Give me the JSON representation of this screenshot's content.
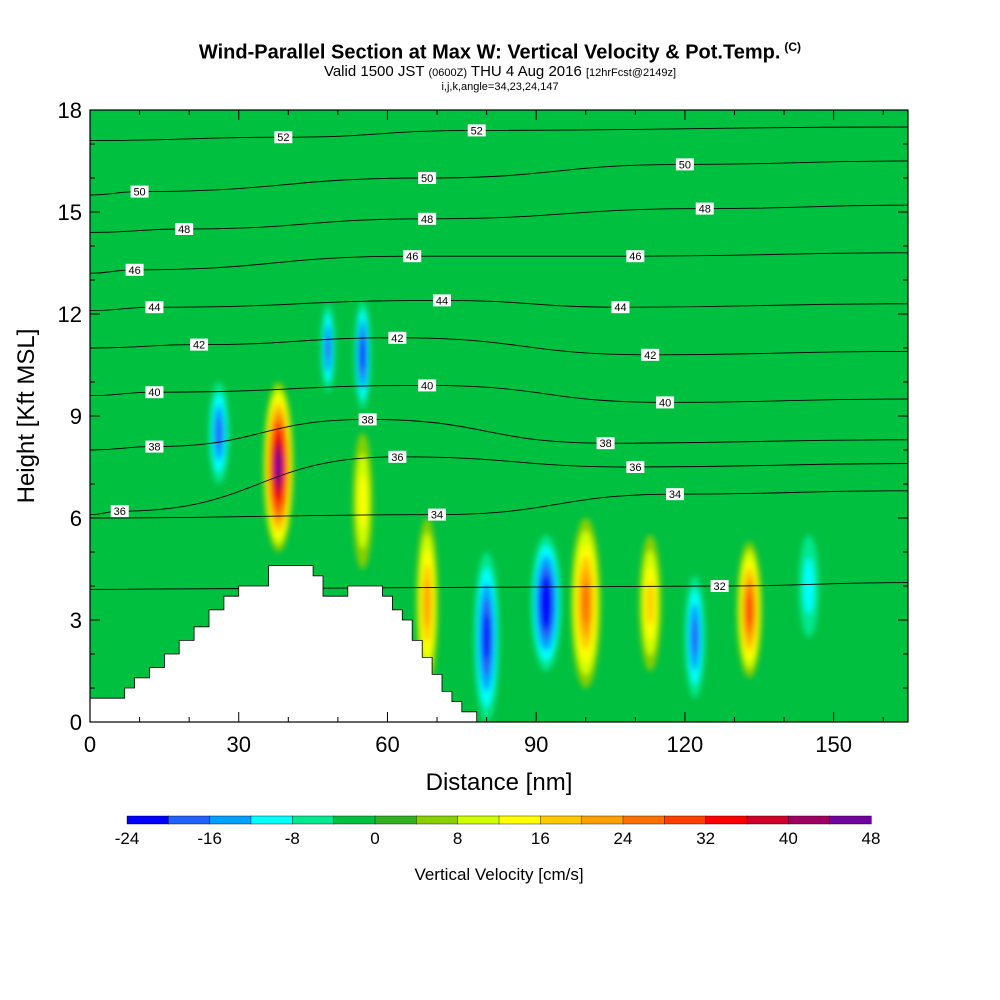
{
  "header": {
    "title": "Wind-Parallel Section at Max W: Vertical Velocity & Pot.Temp.",
    "copyright_mark": "(C)",
    "valid_main": "Valid 1500 JST",
    "valid_utc": "(0600Z)",
    "valid_date": "THU 4 Aug 2016",
    "forecast": "[12hrFcst@2149z]",
    "section_params": "i,j,k,angle=34,23,24,147"
  },
  "colors": {
    "background": "#00c040",
    "scale": [
      "#0000ff",
      "#2060ff",
      "#00a0ff",
      "#00ffff",
      "#00e890",
      "#00c040",
      "#30b020",
      "#88d000",
      "#d0ff00",
      "#ffff00",
      "#ffc800",
      "#ffa000",
      "#ff7000",
      "#ff4000",
      "#ff0000",
      "#d0002a",
      "#a00060",
      "#7000a0"
    ]
  },
  "chart_data": {
    "type": "heatmap",
    "title": "Wind-Parallel Section at Max W: Vertical Velocity & Pot.Temp.",
    "xlabel": "Distance [nm]",
    "ylabel": "Height [Kft MSL]",
    "xlim": [
      0,
      165
    ],
    "ylim": [
      0,
      18
    ],
    "xticks": [
      0,
      30,
      60,
      90,
      120,
      150
    ],
    "yticks": [
      0,
      3,
      6,
      9,
      12,
      15,
      18
    ],
    "colorbar": {
      "title": "Vertical Velocity [cm/s]",
      "min": -24,
      "max": 48,
      "step": 4,
      "tick_values": [
        -24,
        -16,
        -8,
        0,
        8,
        16,
        24,
        32,
        40,
        48
      ]
    },
    "cells": [
      {
        "x": 38,
        "y": 7.5,
        "w": 3.0,
        "h": 2.5,
        "value": 44
      },
      {
        "x": 48,
        "y": 11.0,
        "w": 1.4,
        "h": 1.3,
        "value": -16
      },
      {
        "x": 55,
        "y": 10.8,
        "w": 1.6,
        "h": 1.6,
        "value": -20
      },
      {
        "x": 26,
        "y": 8.5,
        "w": 2.0,
        "h": 1.5,
        "value": -16
      },
      {
        "x": 55,
        "y": 6.5,
        "w": 2.0,
        "h": 2.0,
        "value": 12
      },
      {
        "x": 68,
        "y": 3.5,
        "w": 2.2,
        "h": 2.5,
        "value": 20
      },
      {
        "x": 80,
        "y": 2.5,
        "w": 2.5,
        "h": 2.5,
        "value": -20
      },
      {
        "x": 92,
        "y": 3.5,
        "w": 3.0,
        "h": 2.0,
        "value": -24
      },
      {
        "x": 100,
        "y": 3.5,
        "w": 3.0,
        "h": 2.5,
        "value": 24
      },
      {
        "x": 113,
        "y": 3.5,
        "w": 2.2,
        "h": 2.0,
        "value": 16
      },
      {
        "x": 122,
        "y": 2.5,
        "w": 2.0,
        "h": 1.8,
        "value": -16
      },
      {
        "x": 133,
        "y": 3.3,
        "w": 2.5,
        "h": 2.0,
        "value": 28
      },
      {
        "x": 145,
        "y": 4.0,
        "w": 2.0,
        "h": 1.5,
        "value": -8
      }
    ],
    "terrain": [
      [
        0,
        0.7
      ],
      [
        6,
        0.7
      ],
      [
        7,
        1.0
      ],
      [
        9,
        1.3
      ],
      [
        12,
        1.6
      ],
      [
        15,
        2.0
      ],
      [
        18,
        2.4
      ],
      [
        21,
        2.8
      ],
      [
        24,
        3.3
      ],
      [
        27,
        3.7
      ],
      [
        30,
        4.0
      ],
      [
        35,
        4.0
      ],
      [
        36,
        4.6
      ],
      [
        42,
        4.6
      ],
      [
        45,
        4.3
      ],
      [
        47,
        3.7
      ],
      [
        50,
        3.7
      ],
      [
        52,
        4.0
      ],
      [
        57,
        4.0
      ],
      [
        59,
        3.7
      ],
      [
        61,
        3.3
      ],
      [
        63,
        3.0
      ],
      [
        65,
        2.4
      ],
      [
        67,
        1.9
      ],
      [
        69,
        1.4
      ],
      [
        71,
        0.9
      ],
      [
        73,
        0.6
      ],
      [
        75,
        0.3
      ],
      [
        78,
        0.3
      ]
    ],
    "theta_contour_labels": [
      {
        "text": "52",
        "x": 39,
        "y": 17.2
      },
      {
        "text": "52",
        "x": 78,
        "y": 17.4
      },
      {
        "text": "50",
        "x": 10,
        "y": 15.6
      },
      {
        "text": "50",
        "x": 68,
        "y": 16.0
      },
      {
        "text": "50",
        "x": 120,
        "y": 16.4
      },
      {
        "text": "48",
        "x": 19,
        "y": 14.5
      },
      {
        "text": "48",
        "x": 68,
        "y": 14.8
      },
      {
        "text": "48",
        "x": 124,
        "y": 15.1
      },
      {
        "text": "46",
        "x": 9,
        "y": 13.3
      },
      {
        "text": "46",
        "x": 65,
        "y": 13.7
      },
      {
        "text": "46",
        "x": 110,
        "y": 13.7
      },
      {
        "text": "44",
        "x": 13,
        "y": 12.2
      },
      {
        "text": "44",
        "x": 71,
        "y": 12.4
      },
      {
        "text": "44",
        "x": 107,
        "y": 12.2
      },
      {
        "text": "42",
        "x": 22,
        "y": 11.1
      },
      {
        "text": "42",
        "x": 62,
        "y": 11.3
      },
      {
        "text": "42",
        "x": 113,
        "y": 10.8
      },
      {
        "text": "40",
        "x": 13,
        "y": 9.7
      },
      {
        "text": "40",
        "x": 68,
        "y": 9.9
      },
      {
        "text": "40",
        "x": 116,
        "y": 9.4
      },
      {
        "text": "38",
        "x": 13,
        "y": 8.1
      },
      {
        "text": "38",
        "x": 56,
        "y": 8.9
      },
      {
        "text": "38",
        "x": 104,
        "y": 8.2
      },
      {
        "text": "36",
        "x": 6,
        "y": 6.2
      },
      {
        "text": "36",
        "x": 62,
        "y": 7.8
      },
      {
        "text": "36",
        "x": 110,
        "y": 7.5
      },
      {
        "text": "34",
        "x": 70,
        "y": 6.1
      },
      {
        "text": "34",
        "x": 118,
        "y": 6.7
      },
      {
        "text": "32",
        "x": 127,
        "y": 4.0
      }
    ]
  }
}
